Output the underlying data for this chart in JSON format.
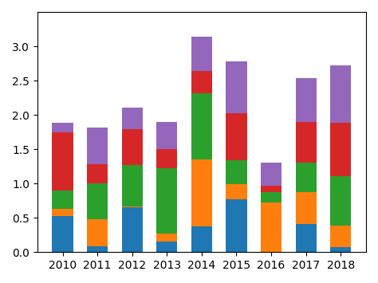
{
  "years": [
    2010,
    2011,
    2012,
    2013,
    2014,
    2015,
    2016,
    2017,
    2018
  ],
  "blue": [
    0.53,
    0.08,
    0.65,
    0.15,
    0.38,
    0.77,
    0.0,
    0.41,
    0.07
  ],
  "orange": [
    0.1,
    0.4,
    0.02,
    0.12,
    0.97,
    0.22,
    0.72,
    0.47,
    0.32
  ],
  "green": [
    0.27,
    0.52,
    0.6,
    0.95,
    0.97,
    0.35,
    0.15,
    0.42,
    0.72
  ],
  "red": [
    0.85,
    0.28,
    0.52,
    0.28,
    0.32,
    0.68,
    0.1,
    0.6,
    0.78
  ],
  "purple": [
    0.14,
    0.54,
    0.32,
    0.4,
    0.5,
    0.76,
    0.33,
    0.64,
    0.83
  ],
  "colors": [
    "#1f77b4",
    "#ff7f0e",
    "#2ca02c",
    "#d62728",
    "#9467bd"
  ],
  "bar_width": 0.6,
  "ylim": [
    0,
    3.5
  ],
  "yticks": [
    0.0,
    0.5,
    1.0,
    1.5,
    2.0,
    2.5,
    3.0
  ]
}
